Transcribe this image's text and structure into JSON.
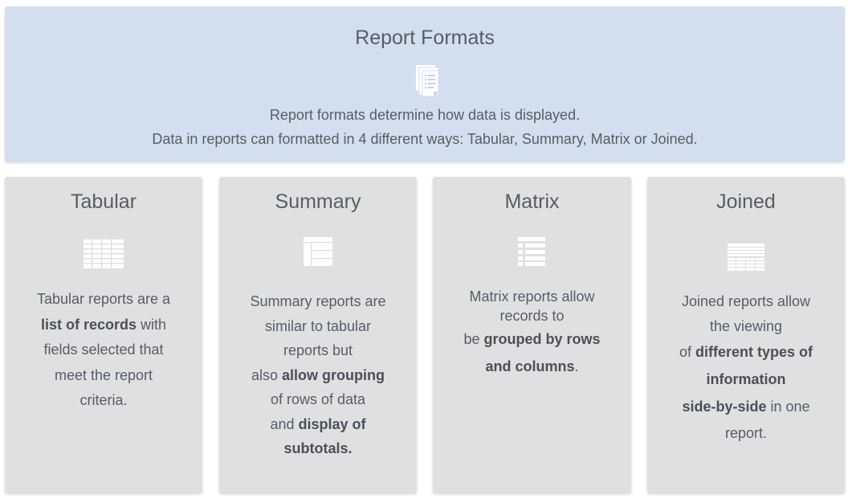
{
  "header": {
    "title": "Report Formats",
    "icon": "report-document-icon",
    "line1": "Report formats determine how data is displayed.",
    "line2": "Data in reports can formatted in 4 different ways: Tabular, Summary, Matrix or Joined."
  },
  "colors": {
    "header_bg": "#d3deef",
    "card_bg": "#e0e0e0",
    "text": "#575d66"
  },
  "cards": [
    {
      "title": "Tabular",
      "icon": "tabular-grid-icon",
      "lines": [
        [
          "Tabular reports are a"
        ],
        [
          "",
          "list of records",
          " with"
        ],
        [
          "fields selected that"
        ],
        [
          "meet the report"
        ],
        [
          "criteria."
        ]
      ]
    },
    {
      "title": "Summary",
      "icon": "summary-layout-icon",
      "lines": [
        [
          "Summary reports are"
        ],
        [
          "similar to tabular"
        ],
        [
          "reports but"
        ],
        [
          "also ",
          "allow grouping"
        ],
        [
          "of rows of data"
        ],
        [
          "and ",
          "display of"
        ],
        [
          "",
          "subtotals."
        ]
      ]
    },
    {
      "title": "Matrix",
      "icon": "matrix-list-icon",
      "lines": [
        [
          "Matrix reports allow"
        ],
        [
          "records to"
        ],
        [
          "be ",
          "grouped by rows"
        ],
        [
          "",
          "and columns",
          "."
        ]
      ]
    },
    {
      "title": "Joined",
      "icon": "joined-table-icon",
      "lines": [
        [
          "Joined reports allow"
        ],
        [
          "the viewing"
        ],
        [
          "of ",
          "different types of"
        ],
        [
          "",
          "information"
        ],
        [
          "",
          "side-by-side",
          " in one"
        ],
        [
          "report."
        ]
      ]
    }
  ]
}
